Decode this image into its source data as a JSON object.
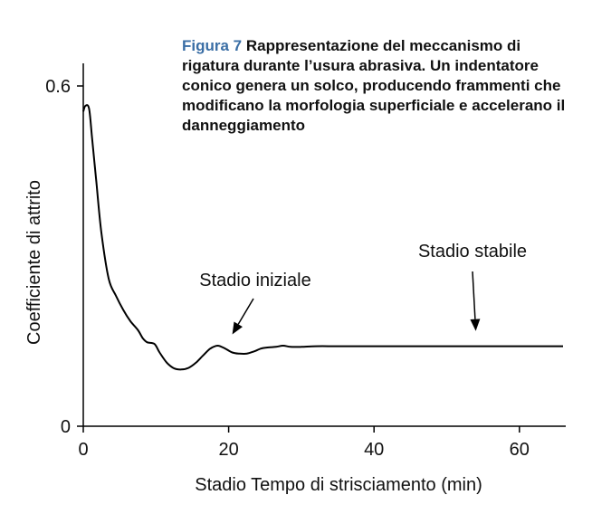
{
  "caption": {
    "figure_label": "Figura 7",
    "text": "Rappresentazione del meccanismo di rigatura durante l’usura abrasiva. Un indentatore conico genera un solco, producendo frammenti che modificano la morfologia superficiale e accelerano il danneggiamento"
  },
  "colors": {
    "figure_label": "#3a6ea5",
    "line": "#000000"
  },
  "chart_data": {
    "type": "line",
    "xlabel": "Stadio Tempo di strisciamento (min)",
    "ylabel": "Coefficiente di attrito",
    "xlim": [
      0,
      66
    ],
    "ylim": [
      0,
      0.6
    ],
    "xticks": [
      0,
      20,
      40,
      60
    ],
    "yticks": [
      0,
      0.6
    ],
    "series": [
      {
        "x": [
          0,
          0.3,
          0.8,
          1.2,
          1.8,
          2.5,
          3.5,
          4.5,
          5.5,
          6.5,
          7.5,
          8.2,
          8.8,
          9.8,
          10.5,
          11.5,
          12.5,
          13.5,
          14.5,
          15.5,
          16.5,
          17.5,
          18.5,
          19.5,
          20.5,
          21.5,
          22.5,
          23.5,
          24.5,
          25.5,
          26.5,
          27.5,
          28.5,
          30,
          32,
          35,
          40,
          50,
          60,
          66
        ],
        "y": [
          0.555,
          0.565,
          0.56,
          0.51,
          0.43,
          0.34,
          0.26,
          0.23,
          0.205,
          0.185,
          0.17,
          0.155,
          0.148,
          0.145,
          0.13,
          0.112,
          0.102,
          0.1,
          0.103,
          0.112,
          0.125,
          0.137,
          0.142,
          0.137,
          0.13,
          0.128,
          0.128,
          0.132,
          0.137,
          0.139,
          0.14,
          0.142,
          0.14,
          0.14,
          0.141,
          0.141,
          0.141,
          0.141,
          0.141,
          0.141
        ]
      }
    ],
    "annotations": [
      {
        "text": "Stadio iniziale",
        "arrow_to": [
          20.5,
          0.162
        ]
      },
      {
        "text": "Stadio stabile",
        "arrow_to": [
          54,
          0.168
        ]
      }
    ],
    "grid": false,
    "legend": "none"
  }
}
